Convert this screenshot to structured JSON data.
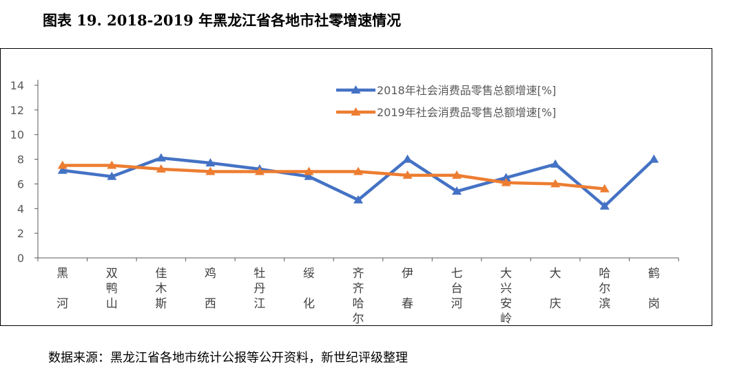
{
  "title": "图表 19. 2018-2019 年黑龙江省各地市社零增速情况",
  "source": "数据来源：黑龙江省各地市统计公报等公开资料，新世纪评级整理",
  "chart_data": {
    "type": "line",
    "categories": [
      "黑河",
      "双鸭山",
      "佳木斯",
      "鸡西",
      "牡丹江",
      "绥化",
      "齐齐哈尔",
      "伊春",
      "七台河",
      "大兴安岭",
      "大庆",
      "哈尔滨",
      "鹤岗"
    ],
    "series": [
      {
        "name": "2018年社会消费品零售总额增速[%]",
        "color": "#4472C4",
        "values": [
          7.1,
          6.6,
          8.1,
          7.7,
          7.2,
          6.6,
          4.7,
          8.0,
          5.4,
          6.5,
          7.6,
          4.2,
          8.0
        ]
      },
      {
        "name": "2019年社会消费品零售总额增速[%]",
        "color": "#ED7D31",
        "values": [
          7.5,
          7.5,
          7.2,
          7.0,
          7.0,
          7.0,
          7.0,
          6.7,
          6.7,
          6.1,
          6.0,
          5.6,
          null
        ]
      }
    ],
    "yticks": [
      0,
      2,
      4,
      6,
      8,
      10,
      12,
      14
    ],
    "ylim": [
      0,
      14
    ],
    "xlabel": "",
    "ylabel": "",
    "legend": "top-right",
    "grid": false,
    "axis_color": "#595959"
  }
}
